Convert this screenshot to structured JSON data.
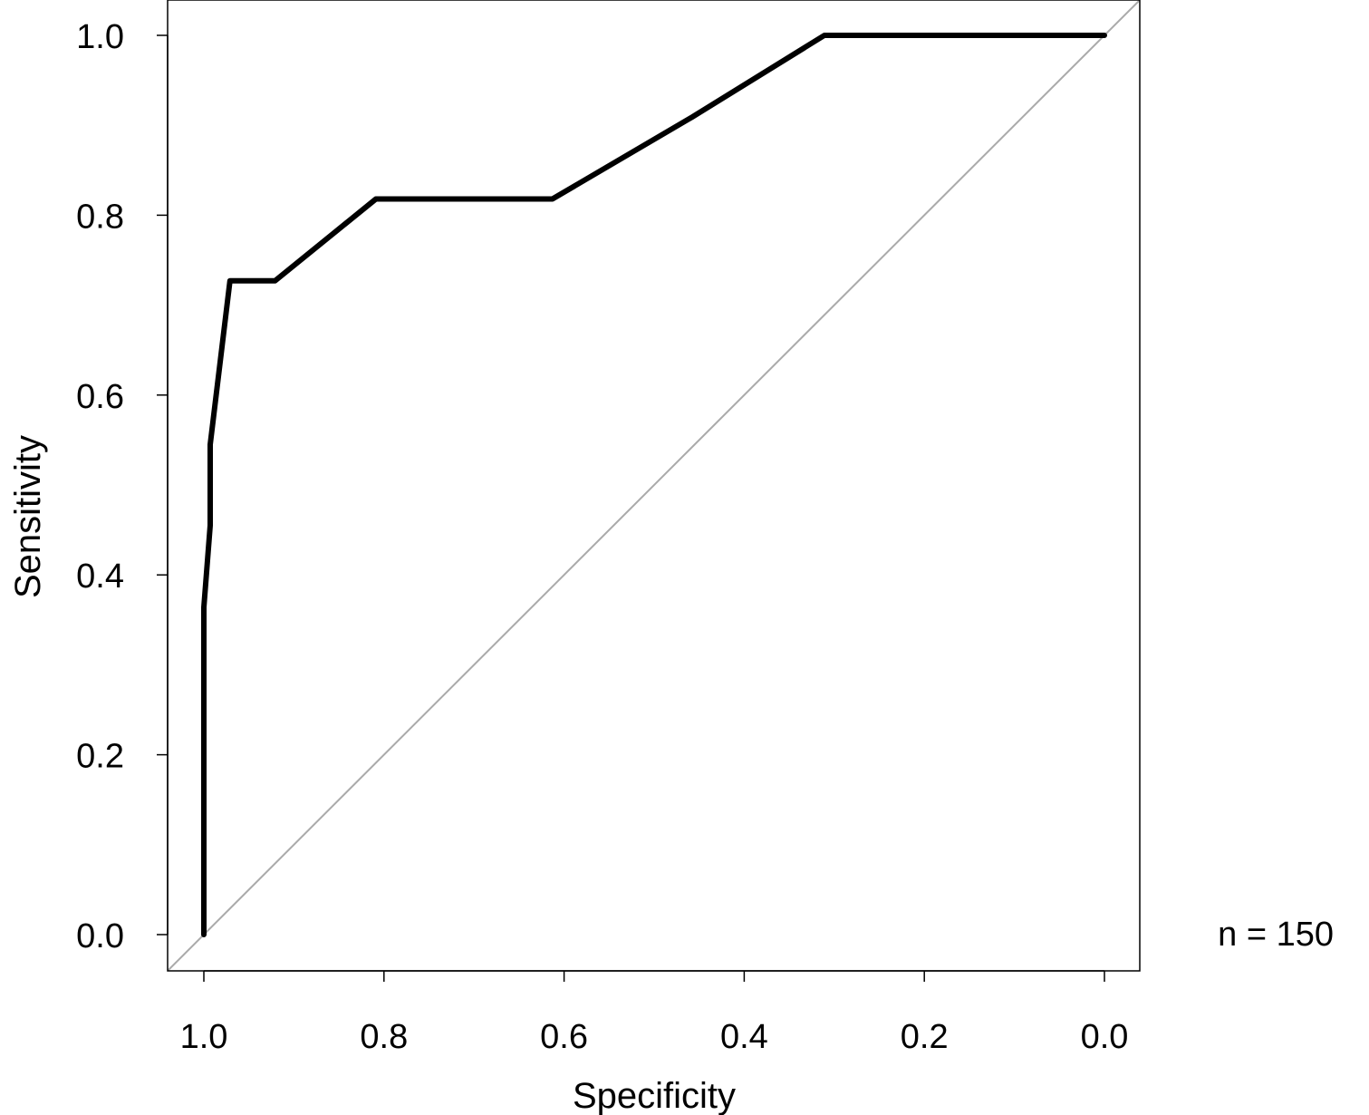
{
  "chart_data": {
    "type": "line",
    "title": "",
    "xlabel": "Specificity",
    "ylabel": "Sensitivity",
    "xlim": [
      1.04,
      -0.04
    ],
    "ylim": [
      -0.04,
      1.04
    ],
    "x_reversed": true,
    "x_ticks": [
      1.0,
      0.8,
      0.6,
      0.4,
      0.2,
      0.0
    ],
    "y_ticks": [
      0.0,
      0.2,
      0.4,
      0.6,
      0.8,
      1.0
    ],
    "x_tick_labels": [
      "1.0",
      "0.8",
      "0.6",
      "0.4",
      "0.2",
      "0.0"
    ],
    "y_tick_labels": [
      "0.0",
      "0.2",
      "0.4",
      "0.6",
      "0.8",
      "1.0"
    ],
    "grid": false,
    "series": [
      {
        "color": "#000000",
        "points": [
          {
            "x": 1.0,
            "y": 0.0
          },
          {
            "x": 1.0,
            "y": 0.364
          },
          {
            "x": 0.993,
            "y": 0.455
          },
          {
            "x": 0.993,
            "y": 0.545
          },
          {
            "x": 0.971,
            "y": 0.727
          },
          {
            "x": 0.921,
            "y": 0.727
          },
          {
            "x": 0.809,
            "y": 0.818
          },
          {
            "x": 0.613,
            "y": 0.818
          },
          {
            "x": 0.458,
            "y": 0.909
          },
          {
            "x": 0.311,
            "y": 1.0
          },
          {
            "x": 0.0,
            "y": 1.0
          }
        ]
      }
    ],
    "reference_line": {
      "from": {
        "x": 1.0,
        "y": 0.0
      },
      "to": {
        "x": 0.0,
        "y": 1.0
      },
      "color": "#aaaaaa"
    },
    "annotation": "n = 150"
  }
}
